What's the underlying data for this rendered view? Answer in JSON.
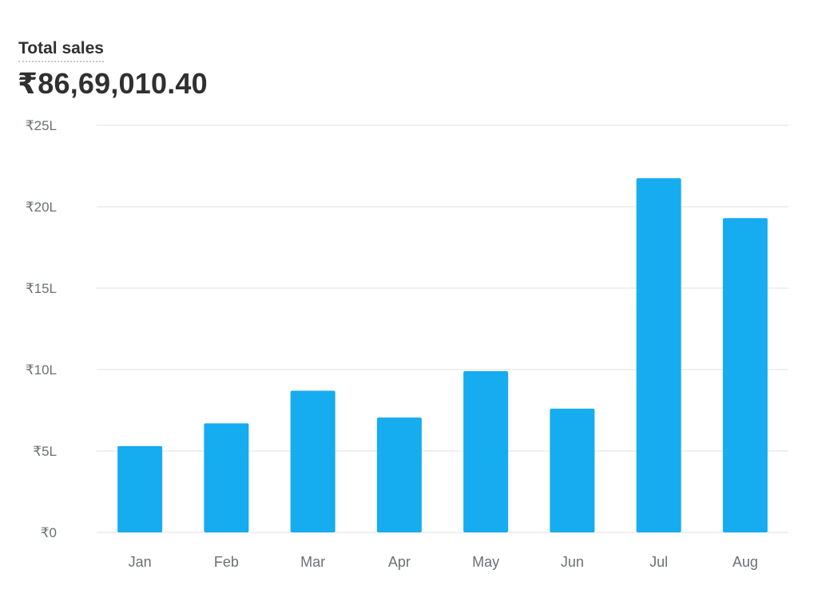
{
  "header": {
    "label": "Total sales",
    "value": "₹86,69,010.40"
  },
  "colors": {
    "bar": "#16acf0",
    "grid": "#ececec",
    "tick": "#6b6f76"
  },
  "chart_data": {
    "type": "bar",
    "categories": [
      "Jan",
      "Feb",
      "Mar",
      "Apr",
      "May",
      "Jun",
      "Jul",
      "Aug"
    ],
    "values": [
      530000,
      670000,
      870000,
      705000,
      990000,
      760000,
      2175000,
      1930000
    ],
    "title": "",
    "xlabel": "",
    "ylabel": "",
    "ylim": [
      0,
      2500000
    ],
    "yticks": [
      0,
      500000,
      1000000,
      1500000,
      2000000,
      2500000
    ],
    "ytick_labels": [
      "₹0",
      "₹5L",
      "₹10L",
      "₹15L",
      "₹20L",
      "₹25L"
    ],
    "grid": true,
    "legend": "none"
  }
}
